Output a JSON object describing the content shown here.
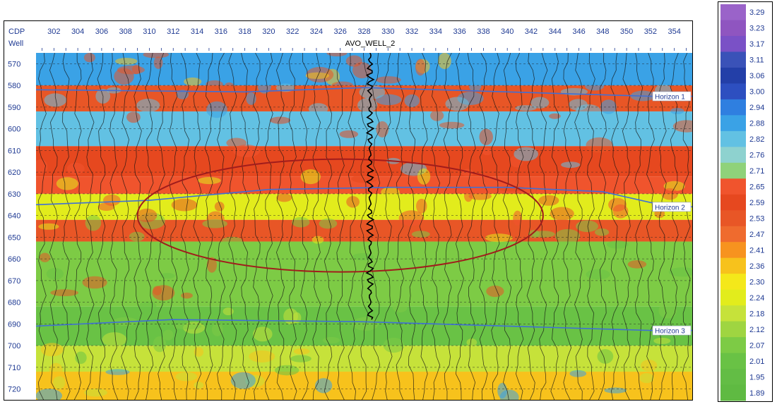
{
  "chart_data": {
    "type": "heatmap",
    "title": "",
    "header_labels": {
      "cdp": "CDP",
      "well": "Well"
    },
    "well_name": "AVO_WELL_2",
    "well_cdp": 328.5,
    "x": {
      "label": "CDP",
      "ticks": [
        302,
        304,
        306,
        308,
        310,
        312,
        314,
        316,
        318,
        320,
        322,
        324,
        326,
        328,
        330,
        332,
        334,
        336,
        338,
        340,
        342,
        344,
        346,
        348,
        350,
        352,
        354
      ],
      "range": [
        300.5,
        355.5
      ]
    },
    "y": {
      "label": "",
      "ticks": [
        570,
        580,
        590,
        600,
        610,
        620,
        630,
        640,
        650,
        660,
        670,
        680,
        690,
        700,
        710,
        720
      ],
      "range": [
        565,
        725
      ],
      "inverted": true
    },
    "horizons": [
      {
        "name": "Horizon 1",
        "color": "#3f6fd6",
        "points": [
          [
            300.5,
            582
          ],
          [
            318,
            583
          ],
          [
            328,
            581
          ],
          [
            340,
            583
          ],
          [
            352,
            585
          ],
          [
            355.5,
            585
          ]
        ]
      },
      {
        "name": "Horizon 2",
        "color": "#3f6fd6",
        "points": [
          [
            300.5,
            635
          ],
          [
            310,
            633
          ],
          [
            320,
            628
          ],
          [
            330,
            627
          ],
          [
            340,
            627
          ],
          [
            348,
            629
          ],
          [
            352,
            634
          ],
          [
            355.5,
            636
          ]
        ]
      },
      {
        "name": "Horizon 3",
        "color": "#3f6fd6",
        "points": [
          [
            300.5,
            691
          ],
          [
            312,
            688
          ],
          [
            328,
            689
          ],
          [
            340,
            691
          ],
          [
            352,
            693
          ],
          [
            355.5,
            693
          ]
        ]
      }
    ],
    "anomaly_ellipse": {
      "center": [
        326,
        640
      ],
      "x_radius": 17,
      "y_radius": 26,
      "color": "#a11c1c"
    },
    "colorbar": {
      "values": [
        3.29,
        3.23,
        3.17,
        3.11,
        3.06,
        3.0,
        2.94,
        2.88,
        2.82,
        2.76,
        2.71,
        2.65,
        2.59,
        2.53,
        2.47,
        2.41,
        2.36,
        2.3,
        2.24,
        2.18,
        2.12,
        2.07,
        2.01,
        1.95,
        1.89
      ],
      "labels": [
        "3.29",
        "3.23",
        "3.17",
        "3.11",
        "3.06",
        "3.00",
        "2.94",
        "2.88",
        "2.82",
        "2.76",
        "2.71",
        "2.65",
        "2.59",
        "2.53",
        "2.47",
        "2.41",
        "2.36",
        "2.30",
        "2.24",
        "2.18",
        "2.12",
        "2.07",
        "2.01",
        "1.95",
        "1.89"
      ],
      "colors": [
        "#9a63c9",
        "#8f55c0",
        "#7a51c6",
        "#3a52b8",
        "#233fa8",
        "#2d4fc0",
        "#2f7fe0",
        "#3aa2e6",
        "#62c1e3",
        "#8ed2cf",
        "#8fd27a",
        "#f0542d",
        "#e6481f",
        "#e85626",
        "#ef6b2e",
        "#f7931f",
        "#f7c21c",
        "#f4e81a",
        "#e2ec1c",
        "#c6e23a",
        "#9fd541",
        "#7dcb45",
        "#69c245",
        "#63bd45",
        "#5fba42"
      ]
    },
    "bands": [
      {
        "from": 565,
        "to": 580,
        "value": 2.85
      },
      {
        "from": 580,
        "to": 592,
        "value": 2.53
      },
      {
        "from": 592,
        "to": 608,
        "value": 2.82
      },
      {
        "from": 608,
        "to": 622,
        "value": 2.56
      },
      {
        "from": 622,
        "to": 630,
        "value": 2.62
      },
      {
        "from": 630,
        "to": 642,
        "value": 2.24
      },
      {
        "from": 642,
        "to": 652,
        "value": 2.5
      },
      {
        "from": 652,
        "to": 682,
        "value": 2.07
      },
      {
        "from": 682,
        "to": 700,
        "value": 2.03
      },
      {
        "from": 700,
        "to": 712,
        "value": 2.18
      },
      {
        "from": 712,
        "to": 725,
        "value": 2.38
      }
    ],
    "grid": true
  }
}
